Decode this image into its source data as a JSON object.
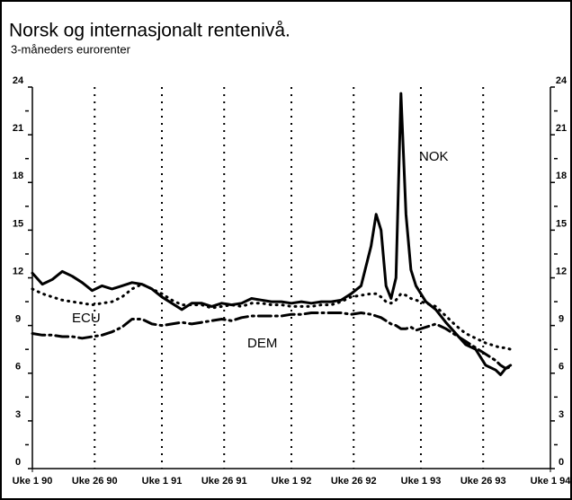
{
  "chart_data": {
    "type": "line",
    "title": "Norsk og internasjonalt rentenivå.",
    "subtitle": "3-måneders eurorenter",
    "annotations": [
      "NOK",
      "ECU",
      "DEM"
    ],
    "x": [
      0,
      4,
      8,
      12,
      16,
      20,
      24,
      28,
      32,
      36,
      40,
      44,
      48,
      52,
      56,
      60,
      64,
      68,
      72,
      76,
      80,
      84,
      88,
      92,
      96,
      100,
      104,
      108,
      112,
      116,
      120,
      124,
      128,
      132,
      136,
      138,
      140,
      142,
      144,
      146,
      148,
      150,
      152,
      154,
      158,
      162,
      166,
      170,
      174,
      178,
      182,
      186,
      188,
      190,
      192
    ],
    "series": [
      {
        "name": "NOK",
        "color": "#000000",
        "style": "solid",
        "values": [
          12.3,
          11.6,
          11.9,
          12.4,
          12.1,
          11.7,
          11.2,
          11.5,
          11.3,
          11.5,
          11.7,
          11.6,
          11.3,
          10.8,
          10.4,
          10.0,
          10.4,
          10.4,
          10.2,
          10.4,
          10.3,
          10.4,
          10.7,
          10.6,
          10.5,
          10.5,
          10.4,
          10.5,
          10.4,
          10.5,
          10.5,
          10.6,
          11.0,
          11.5,
          14.0,
          16.0,
          15.0,
          11.5,
          10.7,
          12.0,
          23.6,
          16.0,
          12.5,
          11.5,
          10.5,
          10.0,
          9.2,
          8.5,
          7.8,
          7.5,
          6.5,
          6.2,
          5.9,
          6.3,
          6.5
        ]
      },
      {
        "name": "ECU",
        "color": "#000000",
        "style": "dotted",
        "values": [
          11.3,
          11.0,
          10.8,
          10.6,
          10.5,
          10.4,
          10.3,
          10.4,
          10.5,
          10.8,
          11.3,
          11.6,
          11.3,
          11.0,
          10.6,
          10.3,
          10.3,
          10.3,
          10.1,
          10.2,
          10.3,
          10.2,
          10.4,
          10.4,
          10.3,
          10.3,
          10.2,
          10.2,
          10.2,
          10.3,
          10.3,
          10.5,
          10.8,
          10.9,
          11.0,
          11.0,
          10.8,
          10.5,
          10.4,
          10.6,
          11.0,
          10.9,
          10.7,
          10.6,
          10.4,
          10.2,
          9.6,
          9.0,
          8.5,
          8.2,
          7.9,
          7.7,
          7.6,
          7.6,
          7.5
        ]
      },
      {
        "name": "DEM",
        "color": "#000000",
        "style": "dashdot",
        "values": [
          8.5,
          8.4,
          8.4,
          8.3,
          8.3,
          8.2,
          8.3,
          8.4,
          8.6,
          8.9,
          9.4,
          9.4,
          9.1,
          9.0,
          9.1,
          9.2,
          9.1,
          9.2,
          9.3,
          9.4,
          9.3,
          9.5,
          9.6,
          9.6,
          9.6,
          9.6,
          9.7,
          9.7,
          9.8,
          9.8,
          9.8,
          9.8,
          9.7,
          9.8,
          9.7,
          9.6,
          9.5,
          9.3,
          9.1,
          9.0,
          8.8,
          8.8,
          8.9,
          8.7,
          8.9,
          9.1,
          8.8,
          8.4,
          8.0,
          7.6,
          7.2,
          6.8,
          6.5,
          6.3,
          6.4
        ]
      }
    ],
    "xlim": [
      0,
      208
    ],
    "xticks": [
      {
        "value": 0,
        "label": "Uke 1 90"
      },
      {
        "value": 25,
        "label": "Uke 26 90"
      },
      {
        "value": 52,
        "label": "Uke 1 91"
      },
      {
        "value": 77,
        "label": "Uke 26 91"
      },
      {
        "value": 104,
        "label": "Uke 1 92"
      },
      {
        "value": 129,
        "label": "Uke 26 92"
      },
      {
        "value": 156,
        "label": "Uke 1 93"
      },
      {
        "value": 181,
        "label": "Uke 26 93"
      },
      {
        "value": 208,
        "label": "Uke 1 94"
      }
    ],
    "ylim": [
      0,
      24
    ],
    "yticks": [
      0,
      3,
      6,
      9,
      12,
      15,
      18,
      21,
      24
    ],
    "grid": true
  }
}
